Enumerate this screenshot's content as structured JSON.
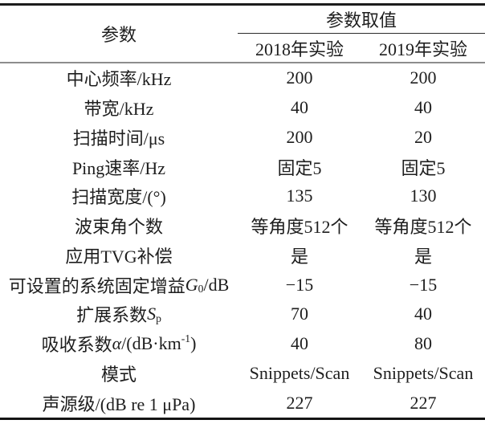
{
  "table": {
    "col1_header": "参数",
    "group_header": "参数取值",
    "sub_headers": [
      "2018年实验",
      "2019年实验"
    ],
    "rows": [
      {
        "label": [
          {
            "t": "中心频率/kHz"
          }
        ],
        "values": [
          "200",
          "200"
        ]
      },
      {
        "label": [
          {
            "t": "带宽/kHz"
          }
        ],
        "values": [
          "40",
          "40"
        ]
      },
      {
        "label": [
          {
            "t": "扫描时间/μs"
          }
        ],
        "values": [
          "200",
          "20"
        ]
      },
      {
        "label": [
          {
            "t": "Ping速率/Hz"
          }
        ],
        "values": [
          "固定5",
          "固定5"
        ]
      },
      {
        "label": [
          {
            "t": "扫描宽度/(°)"
          }
        ],
        "values": [
          "135",
          "130"
        ]
      },
      {
        "label": [
          {
            "t": "波束角个数"
          }
        ],
        "values": [
          "等角度512个",
          "等角度512个"
        ]
      },
      {
        "label": [
          {
            "t": "应用TVG补偿"
          }
        ],
        "values": [
          "是",
          "是"
        ]
      },
      {
        "label": [
          {
            "t": "可设置的系统固定增益"
          },
          {
            "t": "G",
            "s": "i"
          },
          {
            "t": "0",
            "s": "sub"
          },
          {
            "t": "/dB"
          }
        ],
        "values": [
          "−15",
          "−15"
        ]
      },
      {
        "label": [
          {
            "t": "扩展系数"
          },
          {
            "t": "S",
            "s": "i"
          },
          {
            "t": "p",
            "s": "sub"
          }
        ],
        "values": [
          "70",
          "40"
        ]
      },
      {
        "label": [
          {
            "t": "吸收系数"
          },
          {
            "t": "α",
            "s": "i"
          },
          {
            "t": "/(dB·km"
          },
          {
            "t": "-1",
            "s": "sup"
          },
          {
            "t": ")"
          }
        ],
        "values": [
          "40",
          "80"
        ]
      },
      {
        "label": [
          {
            "t": "模式"
          }
        ],
        "values": [
          "Snippets/Scan",
          "Snippets/Scan"
        ]
      },
      {
        "label": [
          {
            "t": "声源级/(dB re 1 μPa)"
          }
        ],
        "values": [
          "227",
          "227"
        ]
      }
    ]
  }
}
